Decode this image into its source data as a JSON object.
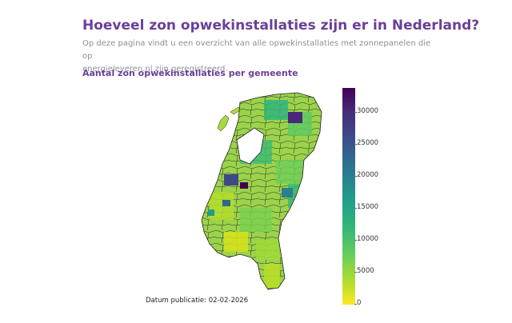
{
  "header": {
    "title": "Hoeveel zon opwekinstallaties zijn er in Nederland?",
    "intro_line1": "Op deze pagina vindt u een overzicht van alle opwekinstallaties met zonnepanelen die op",
    "intro_line2": "energieleveren.nl zijn geregistreerd."
  },
  "map_section": {
    "title": "Aantal zon opwekinstallaties per gemeente",
    "publication_note": "Datum publicatie: 02-02-2026",
    "colorscale": "Viridis (reversed)",
    "colorbar": {
      "min": 0,
      "max": 33500,
      "ticks": [
        "0",
        "5000",
        "10000",
        "15000",
        "20000",
        "25000",
        "30000"
      ]
    }
  },
  "chart_data": {
    "type": "choropleth",
    "title": "Aantal zon opwekinstallaties per gemeente",
    "region": "Nederland",
    "colorbar_range": [
      0,
      33500
    ],
    "colorbar_ticks": [
      0,
      5000,
      10000,
      15000,
      20000,
      25000,
      30000
    ]
  }
}
